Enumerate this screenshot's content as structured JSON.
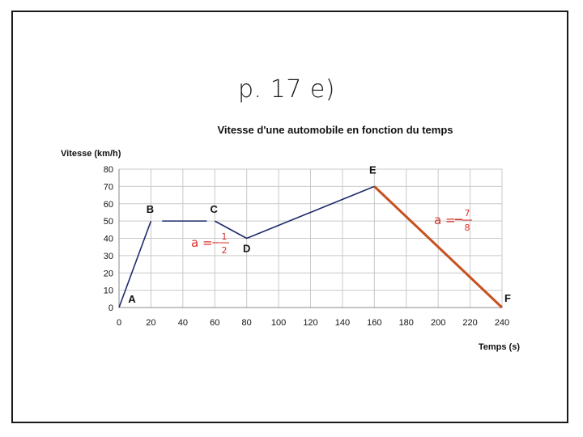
{
  "heading": "p. 17 e)",
  "chart_data": {
    "type": "line",
    "title": "Vitesse d'une automobile en fonction du temps",
    "xlabel": "Temps (s)",
    "ylabel": "Vitesse (km/h)",
    "xlim": [
      0,
      240
    ],
    "ylim": [
      0,
      80
    ],
    "xticks": [
      0,
      20,
      40,
      60,
      80,
      100,
      120,
      140,
      160,
      180,
      200,
      220,
      240
    ],
    "yticks": [
      0,
      10,
      20,
      30,
      40,
      50,
      60,
      70,
      80
    ],
    "grid": true,
    "series": [
      {
        "color": "#1f2a6b",
        "segments": [
          [
            [
              0,
              0
            ],
            [
              20,
              50
            ]
          ],
          [
            [
              27,
              50
            ],
            [
              55,
              50
            ]
          ],
          [
            [
              60,
              50
            ],
            [
              80,
              40
            ],
            [
              160,
              70
            ]
          ]
        ]
      },
      {
        "color": "#c8501f",
        "segments": [
          [
            [
              160,
              70
            ],
            [
              240,
              0
            ]
          ]
        ]
      }
    ],
    "points": [
      {
        "label": "A",
        "x": 0,
        "y": 0
      },
      {
        "label": "B",
        "x": 20,
        "y": 50
      },
      {
        "label": "C",
        "x": 60,
        "y": 50
      },
      {
        "label": "D",
        "x": 80,
        "y": 40
      },
      {
        "label": "E",
        "x": 160,
        "y": 70
      },
      {
        "label": "F",
        "x": 240,
        "y": 0
      }
    ],
    "annotations": [
      {
        "id": "slope-cd",
        "prefix": "a =",
        "sign": "−",
        "numerator": "1",
        "denominator": "2",
        "color": "#d8312a"
      },
      {
        "id": "slope-ef",
        "prefix": "a =",
        "sign": "−",
        "numerator": "7",
        "denominator": "8",
        "color": "#d8312a"
      }
    ]
  }
}
